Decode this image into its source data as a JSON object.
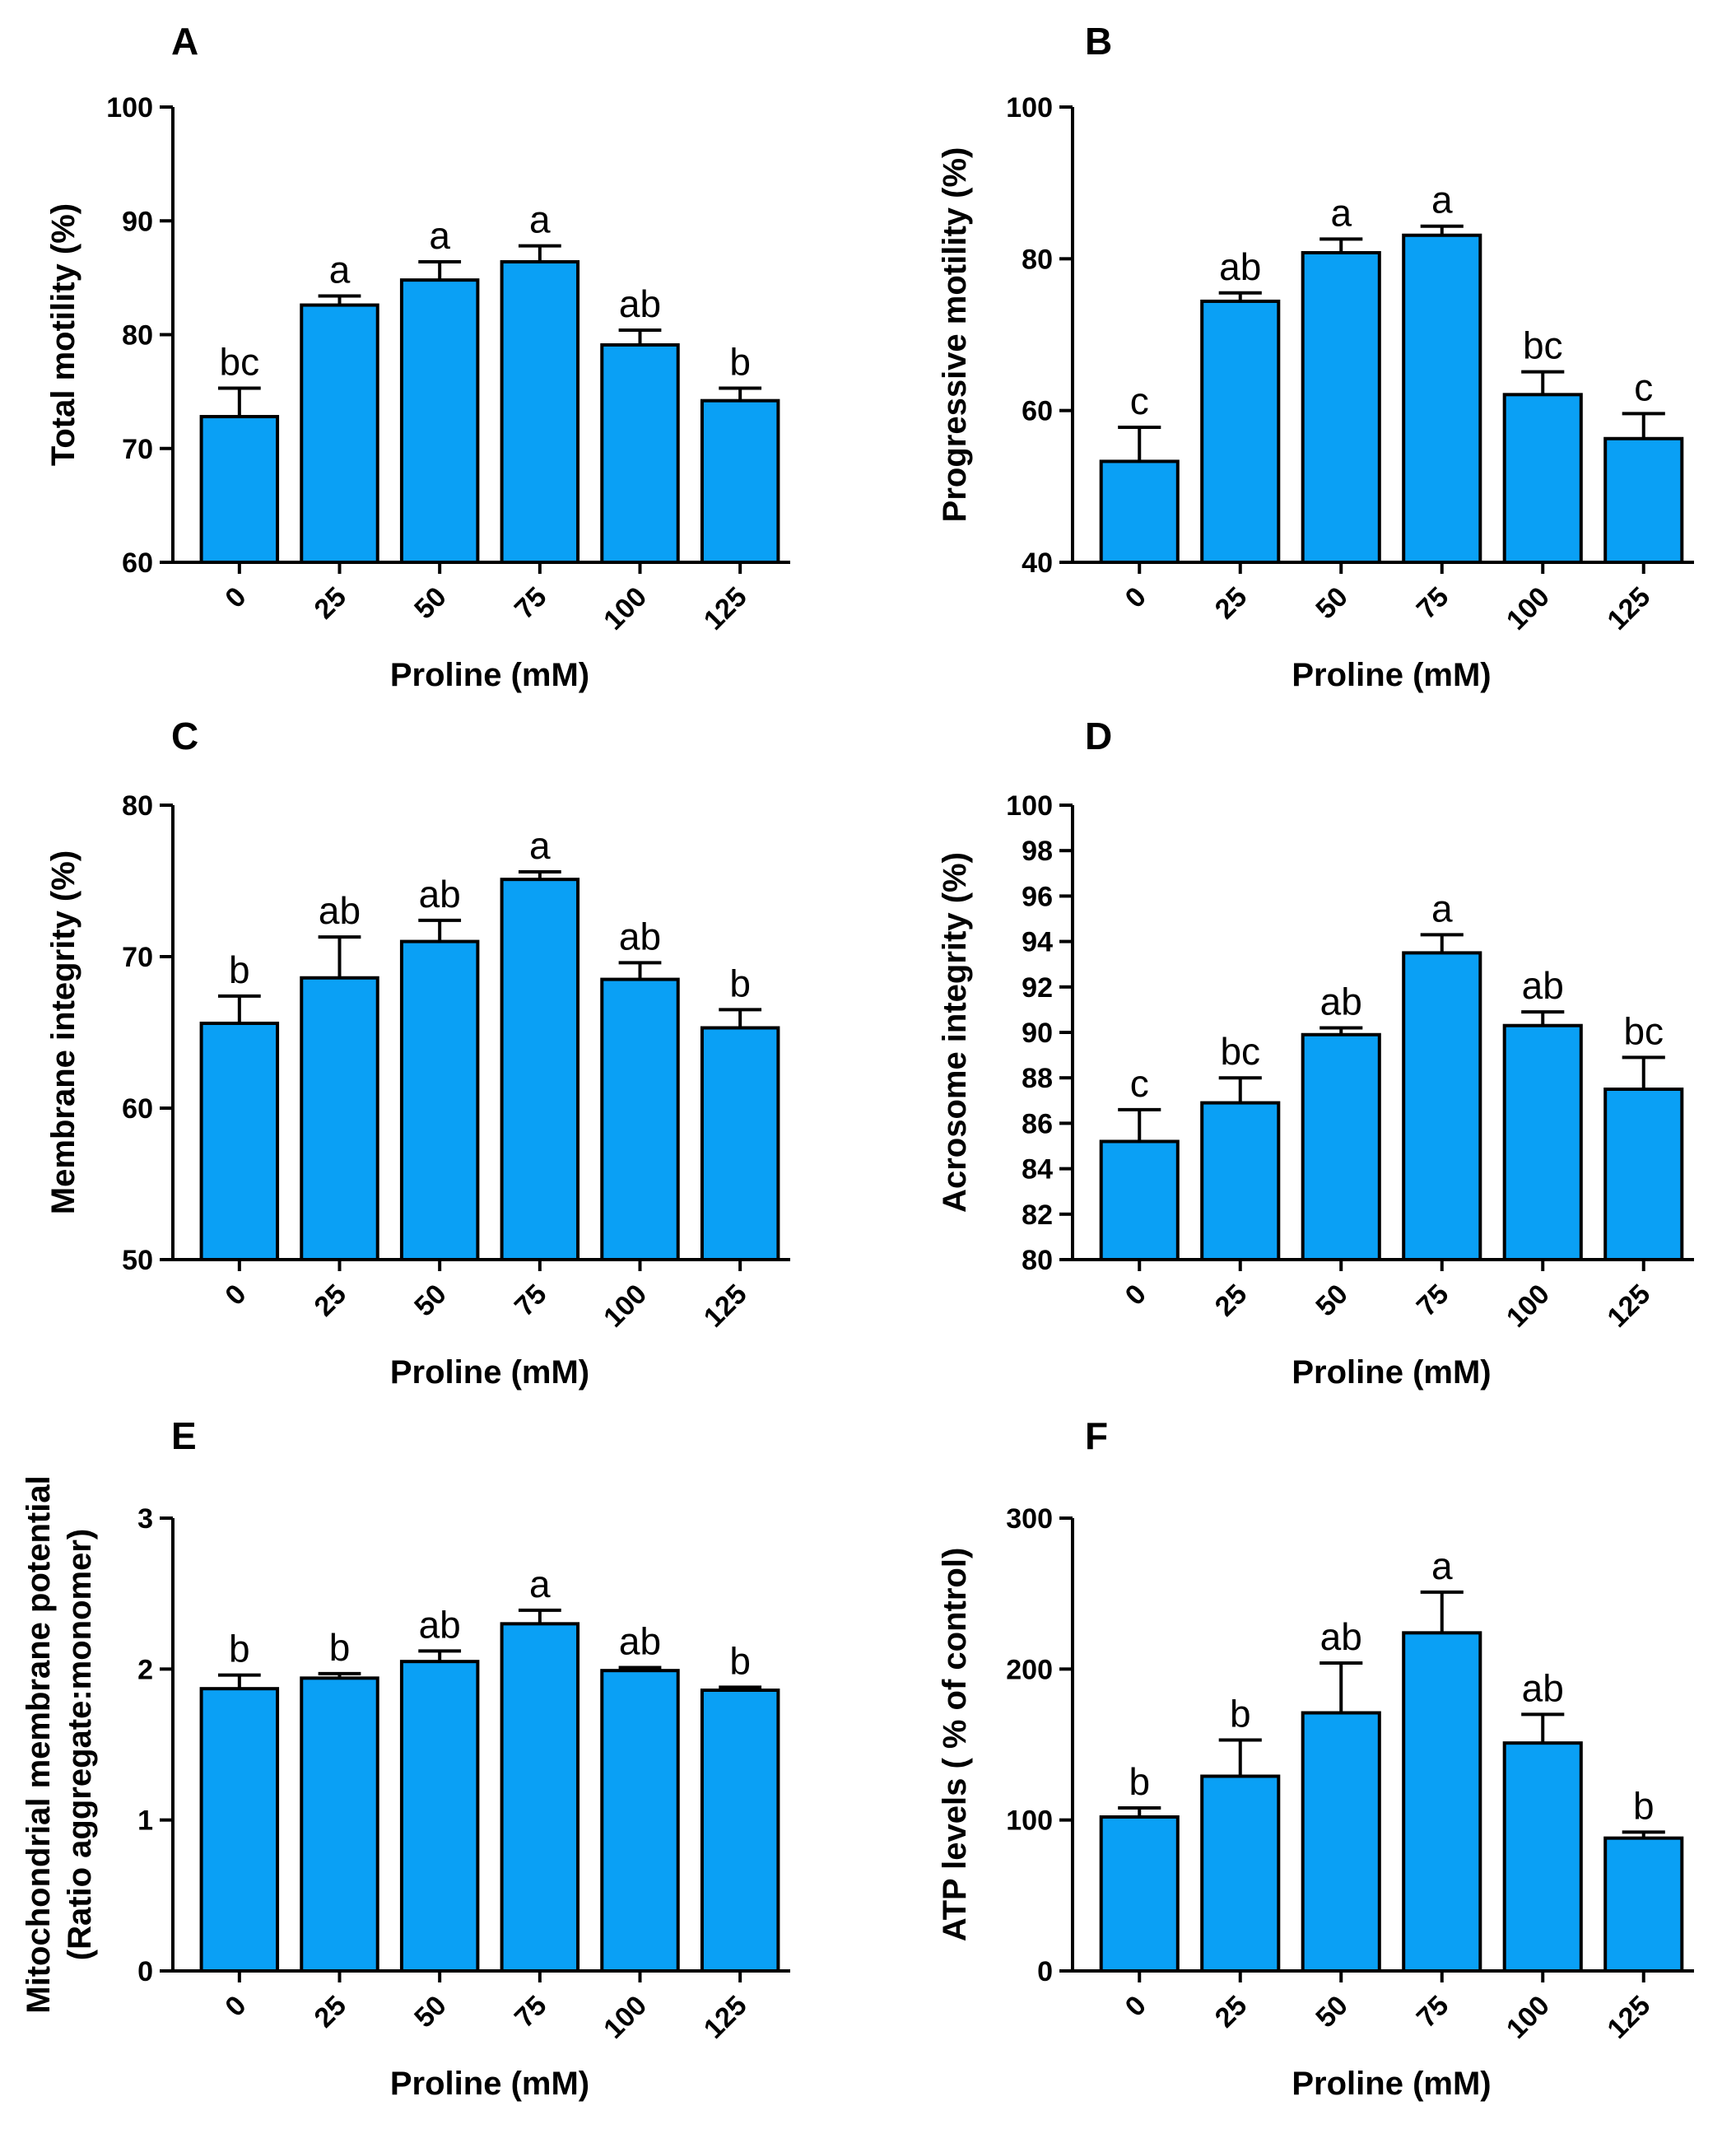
{
  "chart_data": [
    {
      "type": "bar",
      "panel": "A",
      "xlabel": "Proline (mM)",
      "ylabel": "Total motility (%)",
      "categories": [
        "0",
        "25",
        "50",
        "75",
        "100",
        "125"
      ],
      "values": [
        72.8,
        82.6,
        84.8,
        86.4,
        79.1,
        74.2
      ],
      "errors": [
        2.5,
        0.8,
        1.6,
        1.4,
        1.3,
        1.1
      ],
      "letters": [
        "bc",
        "a",
        "a",
        "a",
        "ab",
        "b"
      ],
      "ylim": [
        60,
        100
      ],
      "yticks": [
        60,
        70,
        80,
        90,
        100
      ]
    },
    {
      "type": "bar",
      "panel": "B",
      "xlabel": "Proline (mM)",
      "ylabel": "Progressive motility (%)",
      "categories": [
        "0",
        "25",
        "50",
        "75",
        "100",
        "125"
      ],
      "values": [
        53.3,
        74.4,
        80.8,
        83.1,
        62.1,
        56.3
      ],
      "errors": [
        4.5,
        1.1,
        1.8,
        1.2,
        3.0,
        3.3
      ],
      "letters": [
        "c",
        "ab",
        "a",
        "a",
        "bc",
        "c"
      ],
      "ylim": [
        40,
        100
      ],
      "yticks": [
        40,
        60,
        80,
        100
      ]
    },
    {
      "type": "bar",
      "panel": "C",
      "xlabel": "Proline (mM)",
      "ylabel": "Membrane integrity (%)",
      "categories": [
        "0",
        "25",
        "50",
        "75",
        "100",
        "125"
      ],
      "values": [
        65.6,
        68.6,
        71.0,
        75.1,
        68.5,
        65.3
      ],
      "errors": [
        1.8,
        2.7,
        1.4,
        0.5,
        1.1,
        1.2
      ],
      "letters": [
        "b",
        "ab",
        "ab",
        "a",
        "ab",
        "b"
      ],
      "ylim": [
        50,
        80
      ],
      "yticks": [
        50,
        60,
        70,
        80
      ]
    },
    {
      "type": "bar",
      "panel": "D",
      "xlabel": "Proline (mM)",
      "ylabel": "Acrosome integrity (%)",
      "categories": [
        "0",
        "25",
        "50",
        "75",
        "100",
        "125"
      ],
      "values": [
        85.2,
        86.9,
        89.9,
        93.5,
        90.3,
        87.5
      ],
      "errors": [
        1.4,
        1.1,
        0.3,
        0.8,
        0.6,
        1.4
      ],
      "letters": [
        "c",
        "bc",
        "ab",
        "a",
        "ab",
        "bc"
      ],
      "ylim": [
        80,
        100
      ],
      "yticks": [
        80,
        82,
        84,
        86,
        88,
        90,
        92,
        94,
        96,
        98,
        100
      ]
    },
    {
      "type": "bar",
      "panel": "E",
      "xlabel": "Proline (mM)",
      "ylabel": "Mitochondrial membrane potential",
      "ylabel2": "(Ratio aggregate:monomer)",
      "categories": [
        "0",
        "25",
        "50",
        "75",
        "100",
        "125"
      ],
      "values": [
        1.87,
        1.94,
        2.05,
        2.3,
        1.99,
        1.86
      ],
      "errors": [
        0.09,
        0.03,
        0.07,
        0.09,
        0.02,
        0.02
      ],
      "letters": [
        "b",
        "b",
        "ab",
        "a",
        "ab",
        "b"
      ],
      "ylim": [
        0,
        3
      ],
      "yticks": [
        0,
        1,
        2,
        3
      ]
    },
    {
      "type": "bar",
      "panel": "F",
      "xlabel": "Proline (mM)",
      "ylabel": "ATP levels ( % of control)",
      "categories": [
        "0",
        "25",
        "50",
        "75",
        "100",
        "125"
      ],
      "values": [
        102,
        129,
        171,
        224,
        151,
        88
      ],
      "errors": [
        6,
        24,
        33,
        27,
        19,
        4
      ],
      "letters": [
        "b",
        "b",
        "ab",
        "a",
        "ab",
        "b"
      ],
      "ylim": [
        0,
        300
      ],
      "yticks": [
        0,
        100,
        200,
        300
      ]
    }
  ],
  "colors": {
    "bar": "#0aa0f5",
    "axis": "#000000"
  }
}
